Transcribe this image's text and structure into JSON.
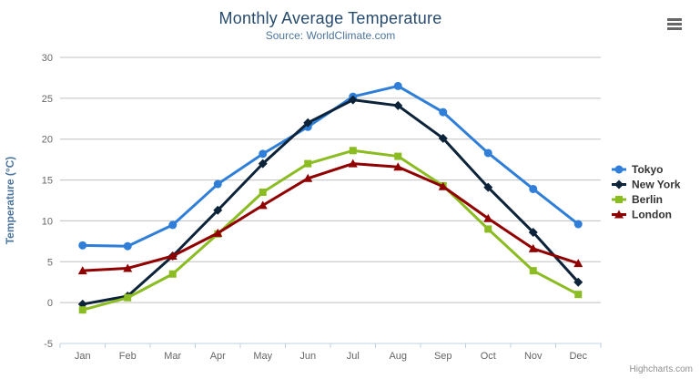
{
  "chart_data": {
    "type": "line",
    "title": "Monthly Average Temperature",
    "subtitle": "Source: WorldClimate.com",
    "ylabel": "Temperature (°C)",
    "xlabel": "",
    "categories": [
      "Jan",
      "Feb",
      "Mar",
      "Apr",
      "May",
      "Jun",
      "Jul",
      "Aug",
      "Sep",
      "Oct",
      "Nov",
      "Dec"
    ],
    "ylim": [
      -5,
      30
    ],
    "ytick_interval": 5,
    "grid": true,
    "legend_position": "right",
    "series": [
      {
        "name": "Tokyo",
        "color": "#2f7ed8",
        "marker": "circle",
        "values": [
          7.0,
          6.9,
          9.5,
          14.5,
          18.2,
          21.5,
          25.2,
          26.5,
          23.3,
          18.3,
          13.9,
          9.6
        ]
      },
      {
        "name": "New York",
        "color": "#0d233a",
        "marker": "diamond",
        "values": [
          -0.2,
          0.8,
          5.7,
          11.3,
          17.0,
          22.0,
          24.8,
          24.1,
          20.1,
          14.1,
          8.6,
          2.5
        ]
      },
      {
        "name": "Berlin",
        "color": "#8bbc21",
        "marker": "square",
        "values": [
          -0.9,
          0.6,
          3.5,
          8.4,
          13.5,
          17.0,
          18.6,
          17.9,
          14.3,
          9.0,
          3.9,
          1.0
        ]
      },
      {
        "name": "London",
        "color": "#910000",
        "marker": "triangle",
        "values": [
          3.9,
          4.2,
          5.7,
          8.5,
          11.9,
          15.2,
          17.0,
          16.6,
          14.2,
          10.3,
          6.6,
          4.8
        ]
      }
    ],
    "credits": "Highcharts.com",
    "colors": {
      "title": "#274b6d",
      "subtitle": "#4d759e",
      "axis_title": "#4d759e",
      "axis_labels": "#666666",
      "gridline": "#c0c0c0",
      "x_axis_line": "#c0d0e0",
      "legend_text": "#333333",
      "credits_text": "#909090",
      "menu_icon": "#666666"
    }
  }
}
